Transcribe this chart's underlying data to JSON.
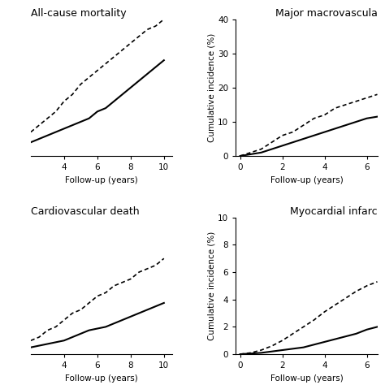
{
  "panels": [
    {
      "title": "All-cause mortality",
      "title_loc": "left",
      "xlim": [
        2,
        10.5
      ],
      "ylim": [
        0,
        40
      ],
      "xticks": [
        4,
        6,
        8,
        10
      ],
      "yticks": [],
      "xlabel": "Follow-up (years)",
      "ylabel": "",
      "solid_x": [
        2,
        2.5,
        3,
        3.5,
        4,
        4.5,
        5,
        5.5,
        6,
        6.5,
        7,
        7.5,
        8,
        8.5,
        9,
        9.5,
        10
      ],
      "solid_y": [
        4,
        5,
        6,
        7,
        8,
        9,
        10,
        11,
        13,
        14,
        16,
        18,
        20,
        22,
        24,
        26,
        28
      ],
      "dashed_x": [
        2,
        2.5,
        3,
        3.5,
        4,
        4.5,
        5,
        5.5,
        6,
        6.5,
        7,
        7.5,
        8,
        8.5,
        9,
        9.5,
        10
      ],
      "dashed_y": [
        7,
        9,
        11,
        13,
        16,
        18,
        21,
        23,
        25,
        27,
        29,
        31,
        33,
        35,
        37,
        38,
        40
      ]
    },
    {
      "title": "Major macrovascula",
      "title_loc": "right",
      "xlim": [
        -0.2,
        6.5
      ],
      "ylim": [
        0,
        40
      ],
      "xticks": [
        0,
        2,
        4,
        6
      ],
      "yticks": [
        0,
        10,
        20,
        30,
        40
      ],
      "xlabel": "Follow-up (years)",
      "ylabel": "Cumulative incidence (%)",
      "solid_x": [
        0,
        0.5,
        1,
        1.5,
        2,
        2.5,
        3,
        3.5,
        4,
        4.5,
        5,
        5.5,
        6,
        6.5
      ],
      "solid_y": [
        0,
        0.5,
        1,
        2,
        3,
        4,
        5,
        6,
        7,
        8,
        9,
        10,
        11,
        11.5
      ],
      "dashed_x": [
        0,
        0.5,
        1,
        1.5,
        2,
        2.5,
        3,
        3.5,
        4,
        4.5,
        5,
        5.5,
        6,
        6.5
      ],
      "dashed_y": [
        0,
        1,
        2,
        4,
        6,
        7,
        9,
        11,
        12,
        14,
        15,
        16,
        17,
        18
      ]
    },
    {
      "title": "Cardiovascular death",
      "title_loc": "left",
      "xlim": [
        2,
        10.5
      ],
      "ylim": [
        0,
        40
      ],
      "xticks": [
        4,
        6,
        8,
        10
      ],
      "yticks": [],
      "xlabel": "Follow-up (years)",
      "ylabel": "",
      "solid_x": [
        2,
        2.5,
        3,
        3.5,
        4,
        4.5,
        5,
        5.5,
        6,
        6.5,
        7,
        7.5,
        8,
        8.5,
        9,
        9.5,
        10
      ],
      "solid_y": [
        2,
        2.5,
        3,
        3.5,
        4,
        5,
        6,
        7,
        7.5,
        8,
        9,
        10,
        11,
        12,
        13,
        14,
        15
      ],
      "dashed_x": [
        2,
        2.5,
        3,
        3.5,
        4,
        4.5,
        5,
        5.5,
        6,
        6.5,
        7,
        7.5,
        8,
        8.5,
        9,
        9.5,
        10
      ],
      "dashed_y": [
        4,
        5,
        7,
        8,
        10,
        12,
        13,
        15,
        17,
        18,
        20,
        21,
        22,
        24,
        25,
        26,
        28
      ]
    },
    {
      "title": "Myocardial infarc",
      "title_loc": "right",
      "xlim": [
        -0.2,
        6.5
      ],
      "ylim": [
        0,
        10
      ],
      "xticks": [
        0,
        2,
        4,
        6
      ],
      "yticks": [
        0,
        2,
        4,
        6,
        8,
        10
      ],
      "xlabel": "Follow-up (years)",
      "ylabel": "Cumulative incidence (%)",
      "solid_x": [
        0,
        0.5,
        1,
        1.5,
        2,
        2.5,
        3,
        3.5,
        4,
        4.5,
        5,
        5.5,
        6,
        6.5
      ],
      "solid_y": [
        0,
        0.05,
        0.1,
        0.2,
        0.3,
        0.4,
        0.5,
        0.7,
        0.9,
        1.1,
        1.3,
        1.5,
        1.8,
        2.0
      ],
      "dashed_x": [
        0,
        0.5,
        1,
        1.5,
        2,
        2.5,
        3,
        3.5,
        4,
        4.5,
        5,
        5.5,
        6,
        6.5
      ],
      "dashed_y": [
        0,
        0.1,
        0.3,
        0.6,
        1.0,
        1.5,
        2.0,
        2.5,
        3.1,
        3.6,
        4.1,
        4.6,
        5.0,
        5.3
      ]
    }
  ],
  "line_color": "#000000",
  "bg_color": "#ffffff",
  "fontsize_title": 9,
  "fontsize_axis": 7.5,
  "fontsize_tick": 7.5
}
